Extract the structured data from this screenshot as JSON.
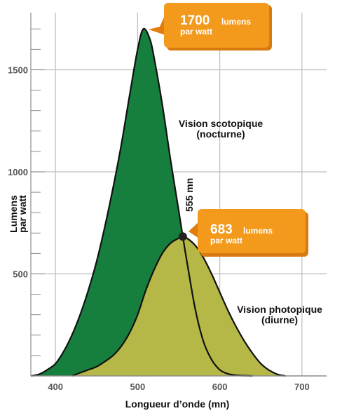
{
  "chart_data": {
    "type": "area",
    "xlabel": "Longueur d’onde (mn)",
    "ylabel": "Lumens par watt",
    "ylabel_lines": [
      "Lumens",
      "par watt"
    ],
    "xlim": [
      370,
      730
    ],
    "ylim": [
      0,
      1780
    ],
    "x_ticks": [
      400,
      500,
      600,
      700
    ],
    "y_ticks": [
      500,
      1000,
      1500
    ],
    "y_minor_step": 100,
    "grid": true,
    "series": [
      {
        "name": "Vision scotopique (nocturne)",
        "name_lines": [
          "Vision scotopique",
          "(nocturne)"
        ],
        "color": "#167f3e",
        "x": [
          370,
          380,
          390,
          400,
          410,
          420,
          430,
          440,
          450,
          460,
          470,
          480,
          490,
          500,
          507,
          515,
          520,
          530,
          540,
          550,
          555,
          560,
          570,
          580,
          590,
          600,
          610,
          620,
          640
        ],
        "y": [
          0,
          8,
          30,
          60,
          120,
          200,
          300,
          420,
          560,
          730,
          920,
          1130,
          1370,
          1600,
          1700,
          1650,
          1560,
          1330,
          1060,
          810,
          683,
          560,
          330,
          170,
          80,
          30,
          10,
          3,
          0
        ]
      },
      {
        "name": "Vision photopique (diurne)",
        "name_lines": [
          "Vision photopique",
          "(diurne)"
        ],
        "color": "#b5b846",
        "x": [
          420,
          430,
          440,
          450,
          460,
          470,
          480,
          490,
          500,
          510,
          520,
          530,
          540,
          550,
          555,
          560,
          570,
          580,
          590,
          600,
          610,
          620,
          630,
          640,
          650,
          660,
          670,
          680
        ],
        "y": [
          0,
          15,
          30,
          45,
          70,
          100,
          145,
          210,
          300,
          420,
          520,
          600,
          650,
          675,
          683,
          675,
          640,
          580,
          500,
          410,
          320,
          240,
          170,
          110,
          60,
          28,
          8,
          0
        ]
      }
    ],
    "annotations": [
      {
        "big": "1700",
        "small1": "lumens",
        "small2": "par watt",
        "x": 507,
        "y": 1700
      },
      {
        "big": "683",
        "small1": "lumens",
        "small2": "par watt",
        "x": 555,
        "y": 683
      }
    ],
    "marker": {
      "label": "555 mn",
      "x": 555,
      "y": 683
    },
    "callout_color": "#f39a1c"
  }
}
